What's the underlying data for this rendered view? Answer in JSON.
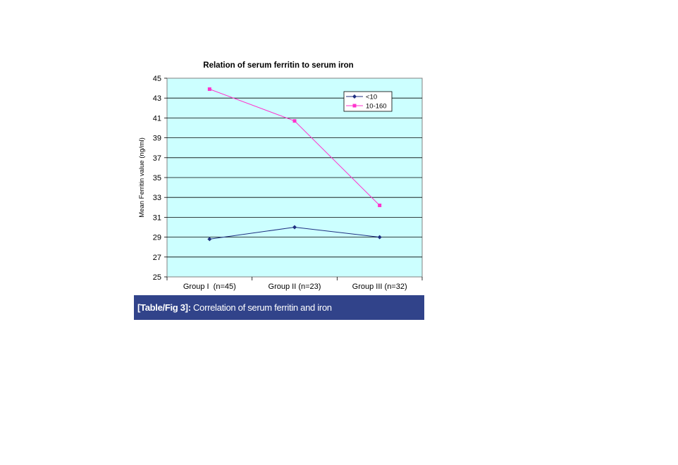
{
  "chart_data": {
    "type": "line",
    "title": "Relation of serum ferritin to serum iron",
    "xlabel": "",
    "ylabel": "Mean Ferritin value   (ng/ml)",
    "categories": [
      "Group I  (n=45)",
      "Group II (n=23)",
      "Group III (n=32)"
    ],
    "ylim": [
      25,
      45
    ],
    "yticks": [
      25,
      27,
      29,
      31,
      33,
      35,
      37,
      39,
      41,
      43,
      45
    ],
    "grid": true,
    "legend_position": "top-right",
    "series": [
      {
        "name": "<10",
        "values": [
          28.8,
          30.0,
          29.0
        ],
        "color": "#1f2f80",
        "marker": "diamond"
      },
      {
        "name": "10-160",
        "values": [
          43.9,
          40.7,
          32.2
        ],
        "color": "#ff33cc",
        "marker": "square"
      }
    ],
    "plot_background": "#ccffff"
  },
  "caption": {
    "label": "[Table/Fig 3]:",
    "text": " Correlation of serum ferritin and iron"
  }
}
